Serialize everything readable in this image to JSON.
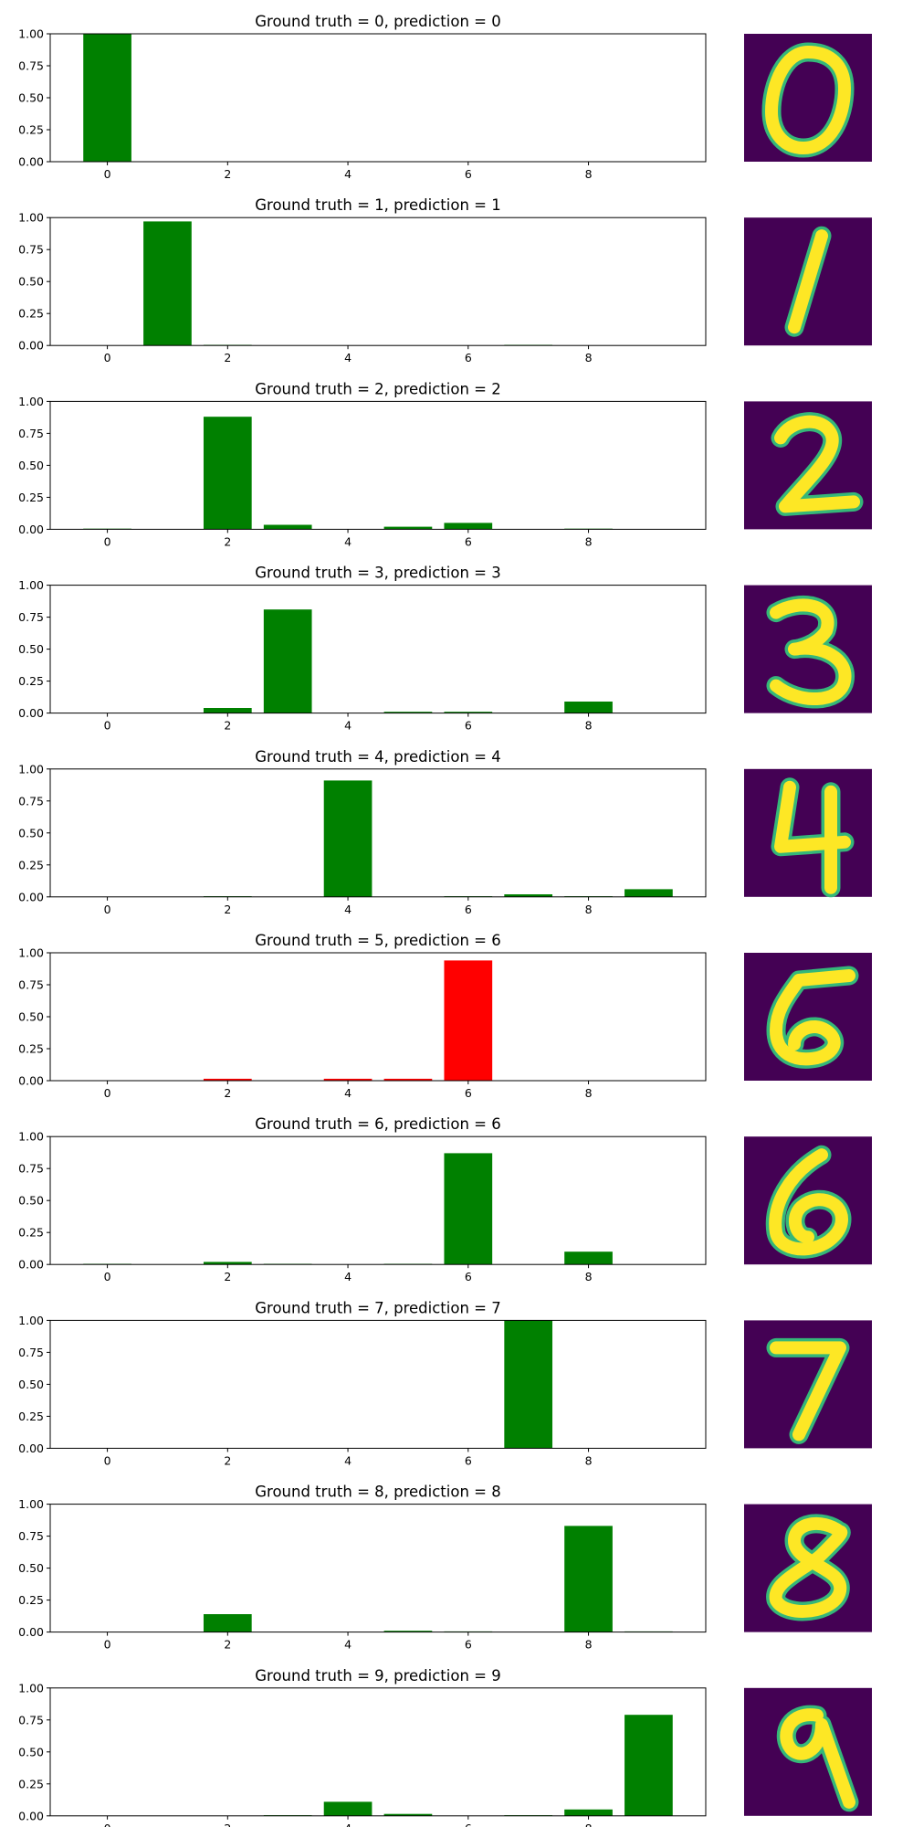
{
  "colors": {
    "correct": "#008000",
    "wrong": "#ff0000",
    "digit_bg": "#440154",
    "digit_fg": "#fde725",
    "axis": "#000000"
  },
  "chart_data": [
    {
      "type": "bar",
      "title": "Ground truth = 0, prediction = 0",
      "categories": [
        0,
        1,
        2,
        3,
        4,
        5,
        6,
        7,
        8,
        9
      ],
      "values": [
        1.0,
        0,
        0,
        0,
        0,
        0,
        0,
        0,
        0,
        0
      ],
      "ylim": [
        0,
        1
      ],
      "ytick_labels": [
        "0.00",
        "0.25",
        "0.50",
        "0.75",
        "1.00"
      ],
      "xtick_labels": [
        "0",
        "2",
        "4",
        "6",
        "8"
      ],
      "bar_color": "green",
      "digit": "0"
    },
    {
      "type": "bar",
      "title": "Ground truth = 1, prediction = 1",
      "categories": [
        0,
        1,
        2,
        3,
        4,
        5,
        6,
        7,
        8,
        9
      ],
      "values": [
        0,
        0.97,
        0.005,
        0,
        0,
        0,
        0,
        0.005,
        0,
        0
      ],
      "ylim": [
        0,
        1
      ],
      "ytick_labels": [
        "0.00",
        "0.25",
        "0.50",
        "0.75",
        "1.00"
      ],
      "xtick_labels": [
        "0",
        "2",
        "4",
        "6",
        "8"
      ],
      "bar_color": "green",
      "digit": "1"
    },
    {
      "type": "bar",
      "title": "Ground truth = 2, prediction = 2",
      "categories": [
        0,
        1,
        2,
        3,
        4,
        5,
        6,
        7,
        8,
        9
      ],
      "values": [
        0.005,
        0,
        0.88,
        0.035,
        0,
        0.02,
        0.05,
        0,
        0.005,
        0
      ],
      "ylim": [
        0,
        1
      ],
      "ytick_labels": [
        "0.00",
        "0.25",
        "0.50",
        "0.75",
        "1.00"
      ],
      "xtick_labels": [
        "0",
        "2",
        "4",
        "6",
        "8"
      ],
      "bar_color": "green",
      "digit": "2"
    },
    {
      "type": "bar",
      "title": "Ground truth = 3, prediction = 3",
      "categories": [
        0,
        1,
        2,
        3,
        4,
        5,
        6,
        7,
        8,
        9
      ],
      "values": [
        0,
        0,
        0.04,
        0.81,
        0,
        0.01,
        0.01,
        0,
        0.09,
        0
      ],
      "ylim": [
        0,
        1
      ],
      "ytick_labels": [
        "0.00",
        "0.25",
        "0.50",
        "0.75",
        "1.00"
      ],
      "xtick_labels": [
        "0",
        "2",
        "4",
        "6",
        "8"
      ],
      "bar_color": "green",
      "digit": "3"
    },
    {
      "type": "bar",
      "title": "Ground truth = 4, prediction = 4",
      "categories": [
        0,
        1,
        2,
        3,
        4,
        5,
        6,
        7,
        8,
        9
      ],
      "values": [
        0,
        0,
        0.005,
        0,
        0.91,
        0,
        0.005,
        0.02,
        0.005,
        0.06
      ],
      "ylim": [
        0,
        1
      ],
      "ytick_labels": [
        "0.00",
        "0.25",
        "0.50",
        "0.75",
        "1.00"
      ],
      "xtick_labels": [
        "0",
        "2",
        "4",
        "6",
        "8"
      ],
      "bar_color": "green",
      "digit": "4"
    },
    {
      "type": "bar",
      "title": "Ground truth = 5, prediction = 6",
      "categories": [
        0,
        1,
        2,
        3,
        4,
        5,
        6,
        7,
        8,
        9
      ],
      "values": [
        0,
        0,
        0.015,
        0,
        0.015,
        0.015,
        0.94,
        0,
        0,
        0
      ],
      "ylim": [
        0,
        1
      ],
      "ytick_labels": [
        "0.00",
        "0.25",
        "0.50",
        "0.75",
        "1.00"
      ],
      "xtick_labels": [
        "0",
        "2",
        "4",
        "6",
        "8"
      ],
      "bar_color": "red",
      "digit": "5"
    },
    {
      "type": "bar",
      "title": "Ground truth = 6, prediction = 6",
      "categories": [
        0,
        1,
        2,
        3,
        4,
        5,
        6,
        7,
        8,
        9
      ],
      "values": [
        0.005,
        0,
        0.02,
        0.005,
        0,
        0.005,
        0.87,
        0,
        0.1,
        0
      ],
      "ylim": [
        0,
        1
      ],
      "ytick_labels": [
        "0.00",
        "0.25",
        "0.50",
        "0.75",
        "1.00"
      ],
      "xtick_labels": [
        "0",
        "2",
        "4",
        "6",
        "8"
      ],
      "bar_color": "green",
      "digit": "6"
    },
    {
      "type": "bar",
      "title": "Ground truth = 7, prediction = 7",
      "categories": [
        0,
        1,
        2,
        3,
        4,
        5,
        6,
        7,
        8,
        9
      ],
      "values": [
        0,
        0,
        0,
        0,
        0,
        0,
        0,
        1.0,
        0,
        0
      ],
      "ylim": [
        0,
        1
      ],
      "ytick_labels": [
        "0.00",
        "0.25",
        "0.50",
        "0.75",
        "1.00"
      ],
      "xtick_labels": [
        "0",
        "2",
        "4",
        "6",
        "8"
      ],
      "bar_color": "green",
      "digit": "7"
    },
    {
      "type": "bar",
      "title": "Ground truth = 8, prediction = 8",
      "categories": [
        0,
        1,
        2,
        3,
        4,
        5,
        6,
        7,
        8,
        9
      ],
      "values": [
        0,
        0,
        0.14,
        0,
        0,
        0.01,
        0.005,
        0,
        0.83,
        0.005
      ],
      "ylim": [
        0,
        1
      ],
      "ytick_labels": [
        "0.00",
        "0.25",
        "0.50",
        "0.75",
        "1.00"
      ],
      "xtick_labels": [
        "0",
        "2",
        "4",
        "6",
        "8"
      ],
      "bar_color": "green",
      "digit": "8"
    },
    {
      "type": "bar",
      "title": "Ground truth = 9, prediction = 9",
      "categories": [
        0,
        1,
        2,
        3,
        4,
        5,
        6,
        7,
        8,
        9
      ],
      "values": [
        0,
        0,
        0,
        0.005,
        0.11,
        0.015,
        0,
        0.005,
        0.05,
        0.79
      ],
      "ylim": [
        0,
        1
      ],
      "ytick_labels": [
        "0.00",
        "0.25",
        "0.50",
        "0.75",
        "1.00"
      ],
      "xtick_labels": [
        "0",
        "2",
        "4",
        "6",
        "8"
      ],
      "bar_color": "green",
      "digit": "9"
    }
  ]
}
